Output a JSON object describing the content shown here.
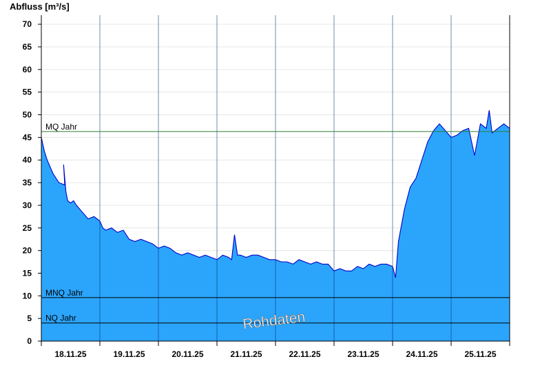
{
  "chart_data": {
    "type": "area",
    "ylabel": "Abfluss [m³/s]",
    "ylim": [
      0,
      72
    ],
    "yticks": [
      0,
      5,
      10,
      15,
      20,
      25,
      30,
      35,
      40,
      45,
      50,
      55,
      60,
      65,
      70
    ],
    "xlim": [
      0,
      8
    ],
    "xtick_labels": [
      "18.11.25",
      "19.11.25",
      "20.11.25",
      "21.11.25",
      "22.11.25",
      "23.11.25",
      "24.11.25",
      "25.11.25"
    ],
    "grid": true,
    "colors": {
      "area": "#2ba5fb",
      "line": "#0000cc",
      "mq": "#2e7d32",
      "ref": "#000000",
      "grid": "#e6e6e6"
    },
    "reference_lines": [
      {
        "label": "MQ Jahr",
        "value": 46.3,
        "color": "#2e7d32"
      },
      {
        "label": "MNQ Jahr",
        "value": 9.6,
        "color": "#000000"
      },
      {
        "label": "NQ Jahr",
        "value": 4.0,
        "color": "#000000"
      }
    ],
    "watermark": "Rohdaten",
    "x_unit": "days since 17.11.25 00:00",
    "series": [
      {
        "name": "Abfluss",
        "x": [
          0.0,
          0.05,
          0.1,
          0.2,
          0.3,
          0.4,
          0.38,
          0.42,
          0.45,
          0.5,
          0.55,
          0.6,
          0.7,
          0.8,
          0.9,
          1.0,
          1.05,
          1.1,
          1.2,
          1.3,
          1.4,
          1.5,
          1.6,
          1.7,
          1.8,
          1.9,
          2.0,
          2.1,
          2.2,
          2.3,
          2.4,
          2.5,
          2.6,
          2.7,
          2.8,
          2.9,
          3.0,
          3.1,
          3.2,
          3.25,
          3.3,
          3.35,
          3.4,
          3.5,
          3.6,
          3.7,
          3.8,
          3.9,
          4.0,
          4.1,
          4.2,
          4.3,
          4.4,
          4.5,
          4.6,
          4.7,
          4.8,
          4.9,
          5.0,
          5.1,
          5.2,
          5.3,
          5.4,
          5.5,
          5.6,
          5.7,
          5.8,
          5.9,
          6.0,
          6.05,
          6.1,
          6.2,
          6.3,
          6.4,
          6.5,
          6.6,
          6.7,
          6.8,
          6.9,
          7.0,
          7.1,
          7.2,
          7.3,
          7.4,
          7.5,
          7.6,
          7.65,
          7.7,
          7.8,
          7.9,
          8.0
        ],
        "y": [
          45.0,
          42.0,
          40.0,
          37.0,
          35.0,
          34.5,
          39.0,
          33.0,
          31.0,
          30.5,
          31.0,
          30.0,
          28.5,
          27.0,
          27.5,
          26.5,
          25.0,
          24.5,
          25.0,
          24.0,
          24.5,
          22.5,
          22.0,
          22.5,
          22.0,
          21.5,
          20.5,
          21.0,
          20.5,
          19.5,
          19.0,
          19.5,
          19.0,
          18.5,
          19.0,
          18.5,
          18.0,
          19.0,
          18.5,
          18.0,
          23.5,
          19.0,
          19.0,
          18.5,
          19.0,
          19.0,
          18.5,
          18.0,
          18.0,
          17.5,
          17.5,
          17.0,
          18.0,
          17.5,
          17.0,
          17.5,
          17.0,
          17.0,
          15.5,
          16.0,
          15.5,
          15.5,
          16.5,
          16.0,
          17.0,
          16.5,
          17.0,
          17.0,
          16.5,
          14.0,
          22.0,
          29.0,
          34.0,
          36.0,
          40.0,
          44.0,
          46.5,
          48.0,
          46.5,
          45.0,
          45.5,
          46.5,
          47.0,
          41.0,
          48.0,
          47.0,
          51.0,
          46.0,
          47.0,
          48.0,
          47.0
        ]
      }
    ]
  }
}
